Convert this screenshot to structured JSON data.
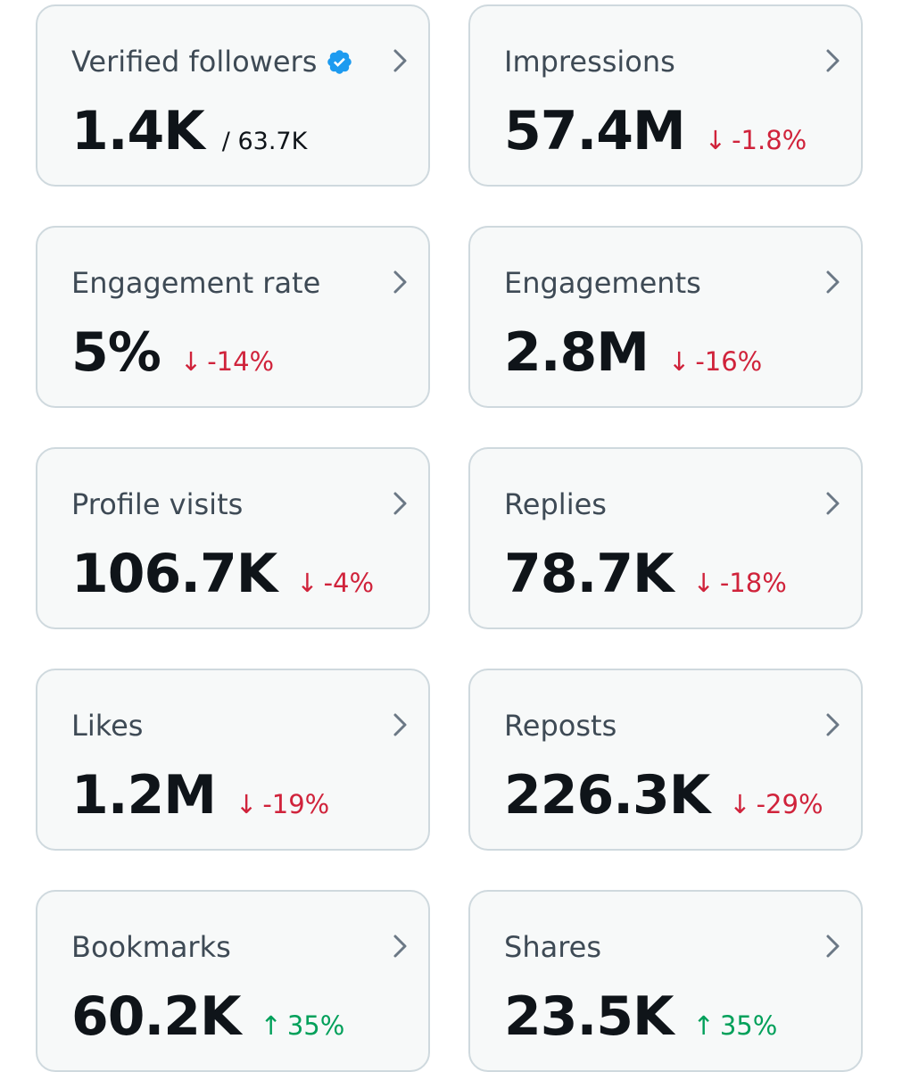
{
  "accent_colors": {
    "verified": "#1d9bf0",
    "negative": "#d0233b",
    "positive": "#00a05a",
    "card_background": "#f7f9f9",
    "card_border": "#cfd9de"
  },
  "cards": [
    {
      "label": "Verified followers",
      "value": "1.4K",
      "sub": "/ 63.7K",
      "verified_icon": "verified-badge-icon",
      "change": "",
      "direction": ""
    },
    {
      "label": "Impressions",
      "value": "57.4M",
      "sub": "",
      "change": "-1.8%",
      "direction": "down"
    },
    {
      "label": "Engagement rate",
      "value": "5%",
      "sub": "",
      "change": "-14%",
      "direction": "down"
    },
    {
      "label": "Engagements",
      "value": "2.8M",
      "sub": "",
      "change": "-16%",
      "direction": "down"
    },
    {
      "label": "Profile visits",
      "value": "106.7K",
      "sub": "",
      "change": "-4%",
      "direction": "down"
    },
    {
      "label": "Replies",
      "value": "78.7K",
      "sub": "",
      "change": "-18%",
      "direction": "down"
    },
    {
      "label": "Likes",
      "value": "1.2M",
      "sub": "",
      "change": "-19%",
      "direction": "down"
    },
    {
      "label": "Reposts",
      "value": "226.3K",
      "sub": "",
      "change": "-29%",
      "direction": "down"
    },
    {
      "label": "Bookmarks",
      "value": "60.2K",
      "sub": "",
      "change": "35%",
      "direction": "up"
    },
    {
      "label": "Shares",
      "value": "23.5K",
      "sub": "",
      "change": "35%",
      "direction": "up"
    }
  ],
  "icons": {
    "down_arrow": "↓",
    "up_arrow": "↑",
    "chevron": "chevron-right-icon"
  }
}
